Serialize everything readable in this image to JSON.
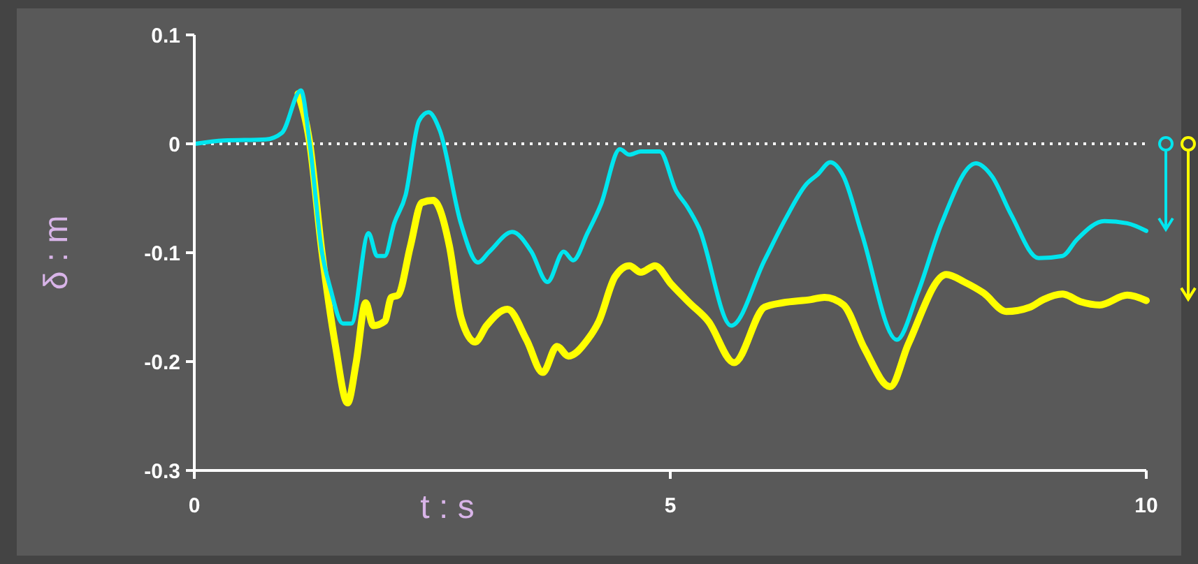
{
  "chart_data": {
    "type": "line",
    "xlabel": "t : s",
    "ylabel": "δ : m",
    "xlim": [
      0,
      10
    ],
    "xticks": [
      0,
      5,
      10
    ],
    "ylim": [
      -0.3,
      0.1
    ],
    "yticks": [
      {
        "value": -0.3,
        "label": "-0.3"
      },
      {
        "value": -0.2,
        "label": "-0.2"
      },
      {
        "value": -0.1,
        "label": "-0.1"
      },
      0,
      0.1
    ],
    "grid": false,
    "marker": "none",
    "line_style": "solid",
    "ref_lines": [
      {
        "axis": "y",
        "value": 0,
        "color": "#ffffff",
        "line_style": "dotted"
      }
    ],
    "series": [
      {
        "color": "#00e5ee",
        "x": [
          0.01,
          0.31,
          0.75,
          0.92,
          1.12,
          1.21,
          1.34,
          1.43,
          1.56,
          1.65,
          1.83,
          1.92,
          2.0,
          2.1,
          2.22,
          2.36,
          2.46,
          2.58,
          2.8,
          2.98,
          3.1,
          3.34,
          3.54,
          3.71,
          3.88,
          3.98,
          4.13,
          4.27,
          4.47,
          4.57,
          4.69,
          4.89,
          5.06,
          5.18,
          5.3,
          5.64,
          5.99,
          6.21,
          6.43,
          6.55,
          6.68,
          6.82,
          7.01,
          7.38,
          7.6,
          7.85,
          8.21,
          8.38,
          8.58,
          8.87,
          9.12,
          9.27,
          9.56,
          9.8,
          10.0
        ],
        "values": [
          0,
          0.003,
          0.004,
          0.01,
          0.049,
          0.002,
          -0.099,
          -0.133,
          -0.165,
          -0.165,
          -0.082,
          -0.103,
          -0.103,
          -0.073,
          -0.047,
          0.021,
          0.029,
          0.012,
          -0.073,
          -0.109,
          -0.099,
          -0.081,
          -0.099,
          -0.127,
          -0.099,
          -0.107,
          -0.082,
          -0.056,
          -0.005,
          -0.01,
          -0.007,
          -0.007,
          -0.043,
          -0.058,
          -0.077,
          -0.167,
          -0.107,
          -0.069,
          -0.037,
          -0.028,
          -0.017,
          -0.03,
          -0.082,
          -0.18,
          -0.137,
          -0.073,
          -0.018,
          -0.03,
          -0.065,
          -0.105,
          -0.103,
          -0.088,
          -0.071,
          -0.073,
          -0.08
        ]
      },
      {
        "color": "#ffff00",
        "x": [
          1.09,
          1.21,
          1.34,
          1.48,
          1.61,
          1.7,
          1.8,
          1.88,
          2.0,
          2.07,
          2.14,
          2.27,
          2.39,
          2.51,
          2.68,
          2.8,
          2.95,
          3.07,
          3.29,
          3.49,
          3.66,
          3.81,
          3.93,
          4.13,
          4.25,
          4.42,
          4.57,
          4.69,
          4.84,
          5.01,
          5.2,
          5.4,
          5.67,
          5.99,
          6.18,
          6.48,
          6.62,
          6.82,
          7.04,
          7.31,
          7.5,
          7.9,
          8.09,
          8.29,
          8.53,
          8.78,
          8.92,
          9.12,
          9.31,
          9.51,
          9.8,
          10.0
        ],
        "values": [
          0.046,
          0.002,
          -0.099,
          -0.184,
          -0.238,
          -0.201,
          -0.146,
          -0.167,
          -0.163,
          -0.141,
          -0.139,
          -0.094,
          -0.054,
          -0.052,
          -0.094,
          -0.159,
          -0.182,
          -0.167,
          -0.152,
          -0.18,
          -0.21,
          -0.186,
          -0.195,
          -0.18,
          -0.163,
          -0.122,
          -0.112,
          -0.118,
          -0.112,
          -0.129,
          -0.146,
          -0.163,
          -0.201,
          -0.15,
          -0.146,
          -0.143,
          -0.141,
          -0.148,
          -0.188,
          -0.223,
          -0.184,
          -0.12,
          -0.127,
          -0.137,
          -0.154,
          -0.15,
          -0.143,
          -0.138,
          -0.145,
          -0.148,
          -0.139,
          -0.144
        ]
      }
    ]
  }
}
